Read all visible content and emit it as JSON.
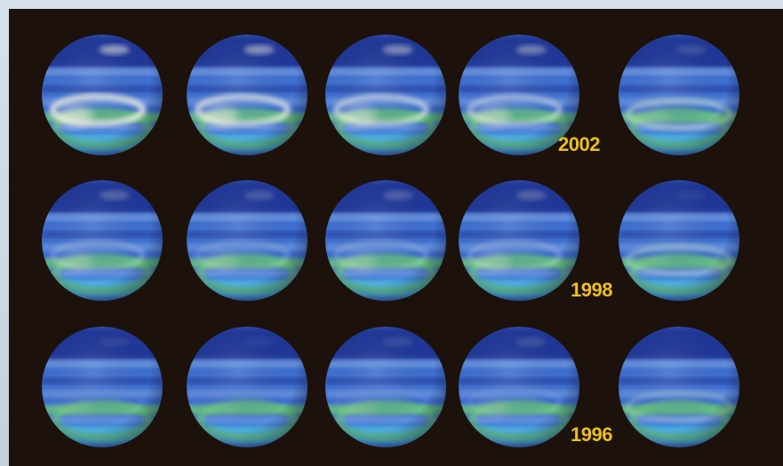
{
  "image": {
    "subject": "planet-disk-grid",
    "rows": [
      {
        "year_label": "2002"
      },
      {
        "year_label": "1998"
      },
      {
        "year_label": "1996"
      }
    ],
    "columns_per_row": 5,
    "colors": {
      "background": "#1d120b",
      "frame": "#c9d6e3",
      "label": "#ecc01e",
      "disk_dark": "#1c2f8f",
      "disk_mid": "#3f6fd0",
      "disk_light": "#8fb6ee",
      "band_green": "#67c47a",
      "band_cyan": "#4fb6e6",
      "cloud": "#f4f1e6"
    }
  }
}
